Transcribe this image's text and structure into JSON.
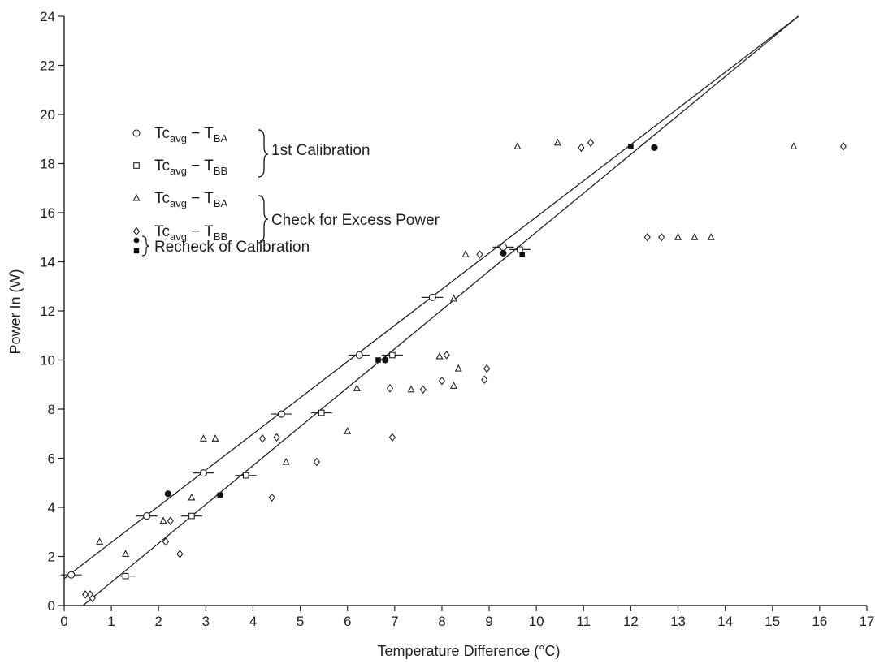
{
  "chart_data": {
    "type": "scatter",
    "title": "",
    "xlabel": "Temperature Difference (°C)",
    "ylabel": "Power In (W)",
    "xlim": [
      0,
      17
    ],
    "ylim": [
      0,
      24
    ],
    "xticks": [
      0,
      1,
      2,
      3,
      4,
      5,
      6,
      7,
      8,
      9,
      10,
      11,
      12,
      13,
      14,
      15,
      16,
      17
    ],
    "yticks": [
      0,
      2,
      4,
      6,
      8,
      10,
      12,
      14,
      16,
      18,
      20,
      22,
      24
    ],
    "grid": false,
    "legend_position": "top-left",
    "legend": {
      "entries": [
        {
          "marker": "circle-open",
          "base": "Tc",
          "sub1": "avg",
          "minus": " − T",
          "sub2": "BA"
        },
        {
          "marker": "square-open",
          "base": "Tc",
          "sub1": "avg",
          "minus": " − T",
          "sub2": "BB"
        },
        {
          "marker": "triangle-open",
          "base": "Tc",
          "sub1": "avg",
          "minus": " − T",
          "sub2": "BA"
        },
        {
          "marker": "diamond-open",
          "base": "Tc",
          "sub1": "avg",
          "minus": " − T",
          "sub2": "BB"
        }
      ],
      "groups": [
        "1st Calibration",
        "Check for Excess Power",
        "Recheck of Calibration"
      ]
    },
    "series": [
      {
        "marker": "circle-open",
        "points": [
          [
            0.15,
            1.25
          ],
          [
            1.75,
            3.65
          ],
          [
            2.95,
            5.4
          ],
          [
            4.6,
            7.8
          ],
          [
            6.25,
            10.2
          ],
          [
            7.8,
            12.55
          ],
          [
            9.3,
            14.6
          ]
        ],
        "error_bars": true
      },
      {
        "marker": "square-open",
        "points": [
          [
            1.3,
            1.2
          ],
          [
            2.7,
            3.65
          ],
          [
            3.85,
            5.3
          ],
          [
            5.45,
            7.85
          ],
          [
            6.95,
            10.2
          ],
          [
            9.65,
            14.5
          ]
        ],
        "error_bars": true
      },
      {
        "marker": "triangle-open",
        "points": [
          [
            0.75,
            2.6
          ],
          [
            1.3,
            2.1
          ],
          [
            2.1,
            3.45
          ],
          [
            2.7,
            4.4
          ],
          [
            2.95,
            6.8
          ],
          [
            3.2,
            6.8
          ],
          [
            4.7,
            5.85
          ],
          [
            6.0,
            7.1
          ],
          [
            6.2,
            8.85
          ],
          [
            7.35,
            8.8
          ],
          [
            7.95,
            10.15
          ],
          [
            8.25,
            12.5
          ],
          [
            8.25,
            8.95
          ],
          [
            8.35,
            9.65
          ],
          [
            8.5,
            14.3
          ],
          [
            9.6,
            18.7
          ],
          [
            10.45,
            18.85
          ],
          [
            13.0,
            15.0
          ],
          [
            13.35,
            15.0
          ],
          [
            13.7,
            15.0
          ],
          [
            15.45,
            18.7
          ]
        ]
      },
      {
        "marker": "diamond-open",
        "points": [
          [
            0.45,
            0.45
          ],
          [
            0.55,
            0.45
          ],
          [
            0.6,
            0.3
          ],
          [
            2.15,
            2.6
          ],
          [
            2.25,
            3.45
          ],
          [
            2.45,
            2.1
          ],
          [
            4.2,
            6.8
          ],
          [
            4.4,
            4.4
          ],
          [
            4.5,
            6.85
          ],
          [
            5.35,
            5.85
          ],
          [
            6.9,
            8.85
          ],
          [
            6.95,
            6.85
          ],
          [
            7.6,
            8.8
          ],
          [
            8.0,
            9.15
          ],
          [
            8.1,
            10.2
          ],
          [
            8.8,
            14.3
          ],
          [
            8.9,
            9.2
          ],
          [
            8.95,
            9.65
          ],
          [
            10.95,
            18.65
          ],
          [
            11.15,
            18.85
          ],
          [
            12.35,
            15.0
          ],
          [
            12.65,
            15.0
          ],
          [
            16.5,
            18.7
          ]
        ]
      },
      {
        "marker": "circle-filled",
        "points": [
          [
            2.2,
            4.55
          ],
          [
            6.8,
            10.0
          ],
          [
            9.3,
            14.35
          ],
          [
            12.5,
            18.65
          ]
        ]
      },
      {
        "marker": "square-filled",
        "points": [
          [
            3.3,
            4.5
          ],
          [
            6.65,
            10.0
          ],
          [
            9.7,
            14.3
          ],
          [
            12.0,
            18.7
          ]
        ]
      }
    ],
    "fit_lines": [
      {
        "x": [
          0.0,
          15.55
        ],
        "y": [
          1.1,
          24.0
        ]
      },
      {
        "x": [
          0.4,
          15.55
        ],
        "y": [
          0.0,
          24.0
        ]
      }
    ]
  }
}
